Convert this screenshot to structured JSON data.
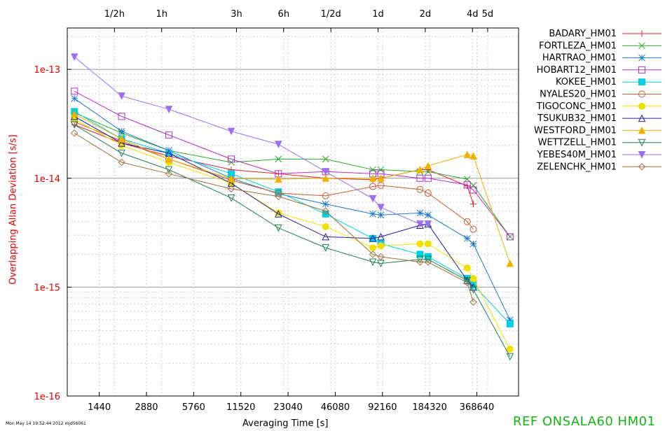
{
  "figure": {
    "timestamp": "Mon May 14 19:52:44 2012 mjd56061",
    "x_title": "Averaging Time [s]",
    "y_title": "Overlapping Allan Deviation [s/s]",
    "reference": "REF ONSALA60  HM01"
  },
  "chart_data": {
    "type": "line",
    "x_scale": "log",
    "y_scale": "log",
    "xlim": [
      900,
      680000
    ],
    "ylim": [
      1e-16,
      2.4e-13
    ],
    "grid": true,
    "legend_position": "right",
    "x_tick_labels": [
      {
        "value": 1440,
        "label": "1440"
      },
      {
        "value": 2880,
        "label": "2880"
      },
      {
        "value": 5760,
        "label": "5760"
      },
      {
        "value": 11520,
        "label": "11520"
      },
      {
        "value": 23040,
        "label": "23040"
      },
      {
        "value": 46080,
        "label": "46080"
      },
      {
        "value": 92160,
        "label": "92160"
      },
      {
        "value": 184320,
        "label": "184320"
      },
      {
        "value": 368640,
        "label": "368640"
      }
    ],
    "top_tick_labels": [
      {
        "value": 1800,
        "label": "1/2h"
      },
      {
        "value": 3600,
        "label": "1h"
      },
      {
        "value": 10800,
        "label": "3h"
      },
      {
        "value": 21600,
        "label": "6h"
      },
      {
        "value": 43200,
        "label": "1/2d"
      },
      {
        "value": 86400,
        "label": "1d"
      },
      {
        "value": 172800,
        "label": "2d"
      },
      {
        "value": 345600,
        "label": "4d"
      },
      {
        "value": 432000,
        "label": "5d"
      }
    ],
    "y_tick_labels": [
      {
        "value": 1e-13,
        "label": "1e-13"
      },
      {
        "value": 1e-14,
        "label": "1e-14"
      },
      {
        "value": 1e-15,
        "label": "1e-15"
      },
      {
        "value": 1e-16,
        "label": "1e-16"
      }
    ],
    "series": [
      {
        "name": "BADARY_HM01",
        "color": "#e8202a",
        "marker": "plus",
        "points": [
          [
            1000,
            3.1e-14
          ],
          [
            2000,
            2.1e-14
          ],
          [
            4000,
            1.6e-14
          ],
          [
            10000,
            1.2e-14
          ],
          [
            20000,
            1.1e-14
          ],
          [
            40000,
            1e-14
          ],
          [
            80000,
            9.7e-15
          ],
          [
            90000,
            1e-14
          ],
          [
            160000,
            1.2e-14
          ],
          [
            180000,
            1.2e-14
          ],
          [
            320000,
            8.5e-15
          ],
          [
            350000,
            5.8e-15
          ]
        ]
      },
      {
        "name": "FORTLEZA_HM01",
        "color": "#2aa82a",
        "marker": "x",
        "points": [
          [
            1000,
            4e-14
          ],
          [
            2000,
            2.6e-14
          ],
          [
            4000,
            1.8e-14
          ],
          [
            10000,
            1.4e-14
          ],
          [
            20000,
            1.5e-14
          ],
          [
            40000,
            1.5e-14
          ],
          [
            80000,
            1.2e-14
          ],
          [
            90000,
            1.2e-14
          ],
          [
            160000,
            1.15e-14
          ],
          [
            180000,
            1.15e-14
          ],
          [
            320000,
            9.8e-15
          ],
          [
            350000,
            8.6e-15
          ],
          [
            600000,
            2.9e-15
          ]
        ]
      },
      {
        "name": "HARTRAO_HM01",
        "color": "#1e78d0",
        "marker": "asterisk",
        "points": [
          [
            1000,
            5.4e-14
          ],
          [
            2000,
            2.7e-14
          ],
          [
            4000,
            1.8e-14
          ],
          [
            10000,
            1e-14
          ],
          [
            20000,
            7.2e-15
          ],
          [
            40000,
            5.8e-15
          ],
          [
            80000,
            4.7e-15
          ],
          [
            90000,
            4.6e-15
          ],
          [
            160000,
            4.8e-15
          ],
          [
            180000,
            4.6e-15
          ],
          [
            320000,
            2.8e-15
          ],
          [
            350000,
            2.5e-15
          ],
          [
            600000,
            5e-16
          ]
        ]
      },
      {
        "name": "HOBART12_HM01",
        "color": "#b030c8",
        "marker": "square",
        "points": [
          [
            1000,
            6.3e-14
          ],
          [
            2000,
            3.7e-14
          ],
          [
            4000,
            2.5e-14
          ],
          [
            10000,
            1.5e-14
          ],
          [
            20000,
            1.1e-14
          ],
          [
            40000,
            1.15e-14
          ],
          [
            80000,
            1.1e-14
          ],
          [
            90000,
            1.1e-14
          ],
          [
            160000,
            1e-14
          ],
          [
            180000,
            1e-14
          ],
          [
            320000,
            8.7e-15
          ],
          [
            350000,
            7.8e-15
          ],
          [
            600000,
            2.9e-15
          ]
        ]
      },
      {
        "name": "KOKEE_HM01",
        "color": "#00d0e0",
        "marker": "filled-square",
        "points": [
          [
            1000,
            4.1e-14
          ],
          [
            2000,
            2.3e-14
          ],
          [
            4000,
            1.7e-14
          ],
          [
            10000,
            1.1e-14
          ],
          [
            20000,
            7.5e-15
          ],
          [
            40000,
            4.7e-15
          ],
          [
            80000,
            2.8e-15
          ],
          [
            90000,
            2.5e-15
          ],
          [
            160000,
            2e-15
          ],
          [
            180000,
            1.9e-15
          ],
          [
            320000,
            1.2e-15
          ],
          [
            350000,
            1.05e-15
          ],
          [
            600000,
            4.6e-16
          ]
        ]
      },
      {
        "name": "NYALES20_HM01",
        "color": "#c06030",
        "marker": "circle",
        "points": [
          [
            1000,
            3.3e-14
          ],
          [
            2000,
            2.2e-14
          ],
          [
            4000,
            1.5e-14
          ],
          [
            10000,
            9.6e-15
          ],
          [
            20000,
            7.3e-15
          ],
          [
            40000,
            6.9e-15
          ],
          [
            80000,
            8.4e-15
          ],
          [
            90000,
            8.6e-15
          ],
          [
            160000,
            7.9e-15
          ],
          [
            180000,
            7.3e-15
          ],
          [
            320000,
            4e-15
          ],
          [
            350000,
            3.4e-15
          ]
        ]
      },
      {
        "name": "TIGOCONC_HM01",
        "color": "#f0e000",
        "marker": "filled-circle",
        "points": [
          [
            1000,
            3.5e-14
          ],
          [
            2000,
            2e-14
          ],
          [
            4000,
            1.4e-14
          ],
          [
            10000,
            9e-15
          ],
          [
            20000,
            4.8e-15
          ],
          [
            40000,
            3.6e-15
          ],
          [
            80000,
            2.3e-15
          ],
          [
            90000,
            2.4e-15
          ],
          [
            160000,
            2.5e-15
          ],
          [
            180000,
            2.5e-15
          ],
          [
            320000,
            1.5e-15
          ],
          [
            350000,
            1.2e-15
          ],
          [
            600000,
            2.7e-16
          ]
        ]
      },
      {
        "name": "TSUKUB32_HM01",
        "color": "#2020a0",
        "marker": "triangle",
        "points": [
          [
            1000,
            3.7e-14
          ],
          [
            2000,
            2.1e-14
          ],
          [
            4000,
            1.7e-14
          ],
          [
            10000,
            9e-15
          ],
          [
            20000,
            4.7e-15
          ],
          [
            40000,
            2.9e-15
          ],
          [
            80000,
            2.8e-15
          ],
          [
            90000,
            2.9e-15
          ],
          [
            160000,
            3.7e-15
          ],
          [
            180000,
            3.8e-15
          ],
          [
            320000,
            1.15e-15
          ],
          [
            350000,
            1e-15
          ]
        ]
      },
      {
        "name": "WESTFORD_HM01",
        "color": "#f0b000",
        "marker": "filled-triangle",
        "points": [
          [
            1000,
            3.9e-14
          ],
          [
            2000,
            2.3e-14
          ],
          [
            4000,
            1.5e-14
          ],
          [
            10000,
            9.9e-15
          ],
          [
            20000,
            9.8e-15
          ],
          [
            40000,
            1e-14
          ],
          [
            80000,
            1e-14
          ],
          [
            90000,
            1e-14
          ],
          [
            160000,
            1.2e-14
          ],
          [
            180000,
            1.3e-14
          ],
          [
            320000,
            1.65e-14
          ],
          [
            350000,
            1.6e-14
          ],
          [
            600000,
            1.65e-15
          ]
        ]
      },
      {
        "name": "WETTZELL_HM01",
        "color": "#208050",
        "marker": "inverted-triangle",
        "points": [
          [
            1000,
            3.1e-14
          ],
          [
            2000,
            1.7e-14
          ],
          [
            4000,
            1.2e-14
          ],
          [
            10000,
            6.6e-15
          ],
          [
            20000,
            3.5e-15
          ],
          [
            40000,
            2.3e-15
          ],
          [
            80000,
            1.7e-15
          ],
          [
            90000,
            1.65e-15
          ],
          [
            160000,
            1.8e-15
          ],
          [
            180000,
            1.8e-15
          ],
          [
            320000,
            1.15e-15
          ],
          [
            350000,
            9.5e-16
          ],
          [
            600000,
            2.3e-16
          ]
        ]
      },
      {
        "name": "YEBES40M_HM01",
        "color": "#9a70f0",
        "marker": "filled-inverted-triangle",
        "points": [
          [
            1000,
            1.3e-13
          ],
          [
            2000,
            5.7e-14
          ],
          [
            4000,
            4.3e-14
          ],
          [
            10000,
            2.7e-14
          ],
          [
            20000,
            2.05e-14
          ],
          [
            40000,
            1.15e-14
          ],
          [
            80000,
            6.5e-15
          ],
          [
            90000,
            5.4e-15
          ],
          [
            160000,
            3.8e-15
          ],
          [
            180000,
            3.8e-15
          ]
        ]
      },
      {
        "name": "ZELENCHK_HM01",
        "color": "#a07040",
        "marker": "diamond",
        "points": [
          [
            1000,
            2.6e-14
          ],
          [
            2000,
            1.4e-14
          ],
          [
            4000,
            1.1e-14
          ],
          [
            10000,
            8e-15
          ],
          [
            20000,
            6.8e-15
          ],
          [
            40000,
            5e-15
          ],
          [
            80000,
            2e-15
          ],
          [
            90000,
            1.9e-15
          ],
          [
            160000,
            1.7e-15
          ],
          [
            180000,
            1.7e-15
          ],
          [
            320000,
            1.1e-15
          ],
          [
            350000,
            7.3e-16
          ]
        ]
      }
    ]
  }
}
